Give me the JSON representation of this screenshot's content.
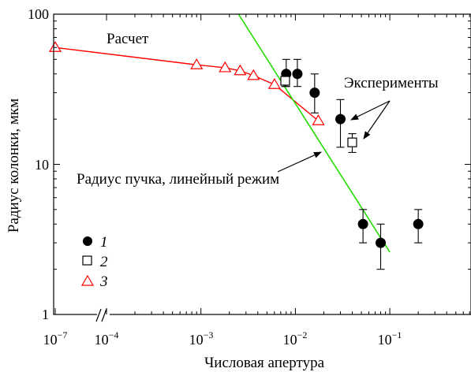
{
  "chart_data": {
    "type": "scatter",
    "xscale": "log",
    "yscale": "log",
    "xlim": [
      1.5e-05,
      0.6
    ],
    "ylim": [
      1,
      100
    ],
    "axis_break": "x",
    "grid": false,
    "xlabel": "Числовая апертура",
    "ylabel": "Радиус колонки, мкм",
    "y_ticks": [
      {
        "value": 1,
        "label": "1"
      },
      {
        "value": 10,
        "label": "10"
      },
      {
        "value": 100,
        "label": "100"
      }
    ],
    "x_ticks": [
      {
        "value": 2.2e-05,
        "base": "10",
        "exp": "−7",
        "broken": true
      },
      {
        "value": 0.0001,
        "base": "10",
        "exp": "−4"
      },
      {
        "value": 0.001,
        "base": "10",
        "exp": "−3"
      },
      {
        "value": 0.01,
        "base": "10",
        "exp": "−2"
      },
      {
        "value": 0.1,
        "base": "10",
        "exp": "−1"
      }
    ],
    "series": [
      {
        "name": "1",
        "marker": "filled-circle",
        "color": "#000000",
        "points": [
          {
            "x": 0.008,
            "y": 40,
            "err": [
              33,
              50
            ]
          },
          {
            "x": 0.0105,
            "y": 40,
            "err": [
              33,
              50
            ]
          },
          {
            "x": 0.016,
            "y": 30,
            "err": [
              22,
              40
            ]
          },
          {
            "x": 0.03,
            "y": 20,
            "err": [
              13,
              27
            ]
          },
          {
            "x": 0.052,
            "y": 4,
            "err": [
              3,
              5
            ]
          },
          {
            "x": 0.08,
            "y": 3,
            "err": [
              2,
              4
            ]
          },
          {
            "x": 0.2,
            "y": 4,
            "err": [
              3,
              5
            ]
          }
        ]
      },
      {
        "name": "2",
        "marker": "open-square",
        "color": "#000000",
        "points": [
          {
            "x": 0.0078,
            "y": 36,
            "err": [
              33,
              40
            ]
          },
          {
            "x": 0.04,
            "y": 14,
            "err": [
              12,
              16
            ]
          }
        ]
      },
      {
        "name": "3",
        "marker": "open-triangle",
        "color": "#ff0000",
        "line": true,
        "points": [
          {
            "x": 2.2e-05,
            "y": 60
          },
          {
            "x": 0.0009,
            "y": 46
          },
          {
            "x": 0.0018,
            "y": 44
          },
          {
            "x": 0.0026,
            "y": 42
          },
          {
            "x": 0.0036,
            "y": 39
          },
          {
            "x": 0.006,
            "y": 34
          },
          {
            "x": 0.0175,
            "y": 19.5
          }
        ]
      },
      {
        "name": "Радиус пучка, линейный режим",
        "kind": "line",
        "color": "#22dd00",
        "points": [
          {
            "x": 0.0025,
            "y": 100
          },
          {
            "x": 0.1,
            "y": 2.6
          }
        ]
      }
    ],
    "legend": {
      "placement": "bottom-left",
      "items": [
        "1",
        "2",
        "3"
      ]
    },
    "annotations": {
      "calc": "Расчет",
      "experiments": "Эксперименты",
      "beam": "Радиус пучка, линейный режим"
    }
  }
}
